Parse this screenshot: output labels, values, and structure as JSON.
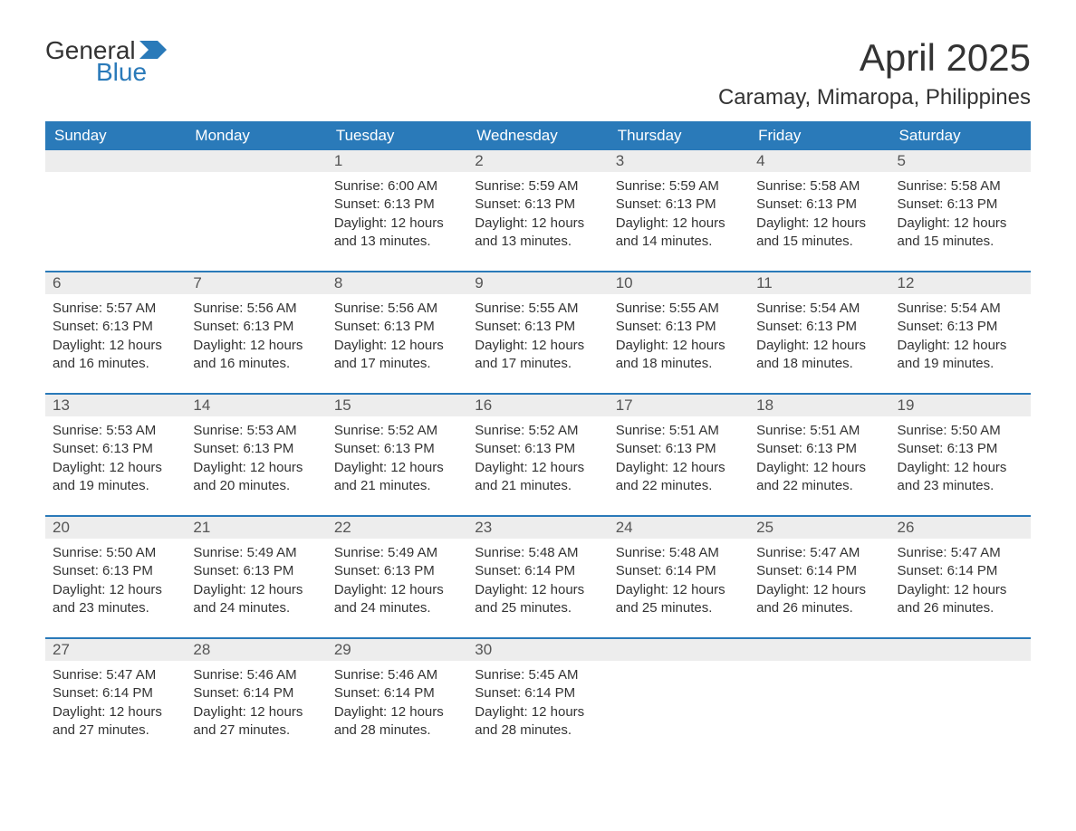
{
  "logo": {
    "text_general": "General",
    "text_blue": "Blue"
  },
  "title": "April 2025",
  "location": "Caramay, Mimaropa, Philippines",
  "colors": {
    "header_bg": "#2a7ab9",
    "header_text": "#ffffff",
    "daynum_bg": "#ededed",
    "daynum_text": "#555555",
    "body_text": "#333333",
    "row_divider": "#2a7ab9",
    "page_bg": "#ffffff"
  },
  "typography": {
    "month_title_size_pt": 32,
    "location_size_pt": 18,
    "day_header_size_pt": 13,
    "daynum_size_pt": 13,
    "body_size_pt": 11,
    "font_family": "Arial"
  },
  "day_headers": [
    "Sunday",
    "Monday",
    "Tuesday",
    "Wednesday",
    "Thursday",
    "Friday",
    "Saturday"
  ],
  "weeks": [
    [
      null,
      null,
      {
        "num": "1",
        "sunrise": "Sunrise: 6:00 AM",
        "sunset": "Sunset: 6:13 PM",
        "daylight1": "Daylight: 12 hours",
        "daylight2": "and 13 minutes."
      },
      {
        "num": "2",
        "sunrise": "Sunrise: 5:59 AM",
        "sunset": "Sunset: 6:13 PM",
        "daylight1": "Daylight: 12 hours",
        "daylight2": "and 13 minutes."
      },
      {
        "num": "3",
        "sunrise": "Sunrise: 5:59 AM",
        "sunset": "Sunset: 6:13 PM",
        "daylight1": "Daylight: 12 hours",
        "daylight2": "and 14 minutes."
      },
      {
        "num": "4",
        "sunrise": "Sunrise: 5:58 AM",
        "sunset": "Sunset: 6:13 PM",
        "daylight1": "Daylight: 12 hours",
        "daylight2": "and 15 minutes."
      },
      {
        "num": "5",
        "sunrise": "Sunrise: 5:58 AM",
        "sunset": "Sunset: 6:13 PM",
        "daylight1": "Daylight: 12 hours",
        "daylight2": "and 15 minutes."
      }
    ],
    [
      {
        "num": "6",
        "sunrise": "Sunrise: 5:57 AM",
        "sunset": "Sunset: 6:13 PM",
        "daylight1": "Daylight: 12 hours",
        "daylight2": "and 16 minutes."
      },
      {
        "num": "7",
        "sunrise": "Sunrise: 5:56 AM",
        "sunset": "Sunset: 6:13 PM",
        "daylight1": "Daylight: 12 hours",
        "daylight2": "and 16 minutes."
      },
      {
        "num": "8",
        "sunrise": "Sunrise: 5:56 AM",
        "sunset": "Sunset: 6:13 PM",
        "daylight1": "Daylight: 12 hours",
        "daylight2": "and 17 minutes."
      },
      {
        "num": "9",
        "sunrise": "Sunrise: 5:55 AM",
        "sunset": "Sunset: 6:13 PM",
        "daylight1": "Daylight: 12 hours",
        "daylight2": "and 17 minutes."
      },
      {
        "num": "10",
        "sunrise": "Sunrise: 5:55 AM",
        "sunset": "Sunset: 6:13 PM",
        "daylight1": "Daylight: 12 hours",
        "daylight2": "and 18 minutes."
      },
      {
        "num": "11",
        "sunrise": "Sunrise: 5:54 AM",
        "sunset": "Sunset: 6:13 PM",
        "daylight1": "Daylight: 12 hours",
        "daylight2": "and 18 minutes."
      },
      {
        "num": "12",
        "sunrise": "Sunrise: 5:54 AM",
        "sunset": "Sunset: 6:13 PM",
        "daylight1": "Daylight: 12 hours",
        "daylight2": "and 19 minutes."
      }
    ],
    [
      {
        "num": "13",
        "sunrise": "Sunrise: 5:53 AM",
        "sunset": "Sunset: 6:13 PM",
        "daylight1": "Daylight: 12 hours",
        "daylight2": "and 19 minutes."
      },
      {
        "num": "14",
        "sunrise": "Sunrise: 5:53 AM",
        "sunset": "Sunset: 6:13 PM",
        "daylight1": "Daylight: 12 hours",
        "daylight2": "and 20 minutes."
      },
      {
        "num": "15",
        "sunrise": "Sunrise: 5:52 AM",
        "sunset": "Sunset: 6:13 PM",
        "daylight1": "Daylight: 12 hours",
        "daylight2": "and 21 minutes."
      },
      {
        "num": "16",
        "sunrise": "Sunrise: 5:52 AM",
        "sunset": "Sunset: 6:13 PM",
        "daylight1": "Daylight: 12 hours",
        "daylight2": "and 21 minutes."
      },
      {
        "num": "17",
        "sunrise": "Sunrise: 5:51 AM",
        "sunset": "Sunset: 6:13 PM",
        "daylight1": "Daylight: 12 hours",
        "daylight2": "and 22 minutes."
      },
      {
        "num": "18",
        "sunrise": "Sunrise: 5:51 AM",
        "sunset": "Sunset: 6:13 PM",
        "daylight1": "Daylight: 12 hours",
        "daylight2": "and 22 minutes."
      },
      {
        "num": "19",
        "sunrise": "Sunrise: 5:50 AM",
        "sunset": "Sunset: 6:13 PM",
        "daylight1": "Daylight: 12 hours",
        "daylight2": "and 23 minutes."
      }
    ],
    [
      {
        "num": "20",
        "sunrise": "Sunrise: 5:50 AM",
        "sunset": "Sunset: 6:13 PM",
        "daylight1": "Daylight: 12 hours",
        "daylight2": "and 23 minutes."
      },
      {
        "num": "21",
        "sunrise": "Sunrise: 5:49 AM",
        "sunset": "Sunset: 6:13 PM",
        "daylight1": "Daylight: 12 hours",
        "daylight2": "and 24 minutes."
      },
      {
        "num": "22",
        "sunrise": "Sunrise: 5:49 AM",
        "sunset": "Sunset: 6:13 PM",
        "daylight1": "Daylight: 12 hours",
        "daylight2": "and 24 minutes."
      },
      {
        "num": "23",
        "sunrise": "Sunrise: 5:48 AM",
        "sunset": "Sunset: 6:14 PM",
        "daylight1": "Daylight: 12 hours",
        "daylight2": "and 25 minutes."
      },
      {
        "num": "24",
        "sunrise": "Sunrise: 5:48 AM",
        "sunset": "Sunset: 6:14 PM",
        "daylight1": "Daylight: 12 hours",
        "daylight2": "and 25 minutes."
      },
      {
        "num": "25",
        "sunrise": "Sunrise: 5:47 AM",
        "sunset": "Sunset: 6:14 PM",
        "daylight1": "Daylight: 12 hours",
        "daylight2": "and 26 minutes."
      },
      {
        "num": "26",
        "sunrise": "Sunrise: 5:47 AM",
        "sunset": "Sunset: 6:14 PM",
        "daylight1": "Daylight: 12 hours",
        "daylight2": "and 26 minutes."
      }
    ],
    [
      {
        "num": "27",
        "sunrise": "Sunrise: 5:47 AM",
        "sunset": "Sunset: 6:14 PM",
        "daylight1": "Daylight: 12 hours",
        "daylight2": "and 27 minutes."
      },
      {
        "num": "28",
        "sunrise": "Sunrise: 5:46 AM",
        "sunset": "Sunset: 6:14 PM",
        "daylight1": "Daylight: 12 hours",
        "daylight2": "and 27 minutes."
      },
      {
        "num": "29",
        "sunrise": "Sunrise: 5:46 AM",
        "sunset": "Sunset: 6:14 PM",
        "daylight1": "Daylight: 12 hours",
        "daylight2": "and 28 minutes."
      },
      {
        "num": "30",
        "sunrise": "Sunrise: 5:45 AM",
        "sunset": "Sunset: 6:14 PM",
        "daylight1": "Daylight: 12 hours",
        "daylight2": "and 28 minutes."
      },
      null,
      null,
      null
    ]
  ]
}
